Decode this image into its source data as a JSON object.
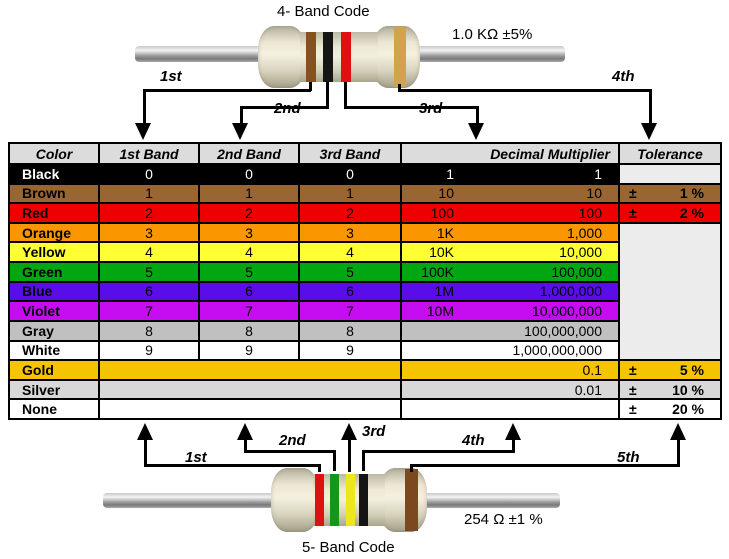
{
  "top_diagram": {
    "title": "4- Band Code",
    "value_label": "1.0 KΩ  ±5%",
    "band_pointers": [
      "1st",
      "2nd",
      "3rd",
      "4th"
    ],
    "bands": [
      {
        "name": "brown",
        "color": "#8A4F1F"
      },
      {
        "name": "black",
        "color": "#151515"
      },
      {
        "name": "red",
        "color": "#DD1111"
      },
      {
        "name": "gold",
        "color": "#D2A24C"
      }
    ]
  },
  "table": {
    "headers": [
      "Color",
      "1st Band",
      "2nd Band",
      "3rd Band",
      "Decimal Multiplier",
      "Tolerance"
    ],
    "plus_minus": "±",
    "rows": [
      {
        "color": "Black",
        "bg": "#000000",
        "fg": "#FFFFFF",
        "bands": [
          "0",
          "0",
          "0"
        ],
        "mult_abbr": "1",
        "mult_value": "1",
        "tolerance": ""
      },
      {
        "color": "Brown",
        "bg": "#996633",
        "bands": [
          "1",
          "1",
          "1"
        ],
        "mult_abbr": "10",
        "mult_value": "10",
        "tolerance": "1 %"
      },
      {
        "color": "Red",
        "bg": "#EE0000",
        "bands": [
          "2",
          "2",
          "2"
        ],
        "mult_abbr": "100",
        "mult_value": "100",
        "tolerance": "2 %"
      },
      {
        "color": "Orange",
        "bg": "#FA9600",
        "bands": [
          "3",
          "3",
          "3"
        ],
        "mult_abbr": "1K",
        "mult_value": "1,000"
      },
      {
        "color": "Yellow",
        "bg": "#FFFF33",
        "bands": [
          "4",
          "4",
          "4"
        ],
        "mult_abbr": "10K",
        "mult_value": "10,000"
      },
      {
        "color": "Green",
        "bg": "#00A713",
        "bands": [
          "5",
          "5",
          "5"
        ],
        "mult_abbr": "100K",
        "mult_value": "100,000"
      },
      {
        "color": "Blue",
        "bg": "#5A0DE8",
        "bands": [
          "6",
          "6",
          "6"
        ],
        "mult_abbr": "1M",
        "mult_value": "1,000,000"
      },
      {
        "color": "Violet",
        "bg": "#C60DF2",
        "bands": [
          "7",
          "7",
          "7"
        ],
        "mult_abbr": "10M",
        "mult_value": "10,000,000"
      },
      {
        "color": "Gray",
        "bg": "#C0C0C0",
        "bands": [
          "8",
          "8",
          "8"
        ],
        "mult_abbr": "",
        "mult_value": "100,000,000"
      },
      {
        "color": "White",
        "bg": "#FFFFFF",
        "bands": [
          "9",
          "9",
          "9"
        ],
        "mult_abbr": "",
        "mult_value": "1,000,000,000"
      },
      {
        "color": "Gold",
        "bg": "#F5C400",
        "merged_bands": true,
        "mult_value": "0.1",
        "tolerance": "5 %"
      },
      {
        "color": "Silver",
        "bg": "#D8D8D8",
        "merged_bands": true,
        "mult_value": "0.01",
        "tolerance": "10 %"
      },
      {
        "color": "None",
        "bg": "#FFFFFF",
        "merged_bands": true,
        "mult_value": "",
        "tolerance": "20 %"
      }
    ]
  },
  "bottom_diagram": {
    "title": "5- Band Code",
    "value_label": "254 Ω  ±1 %",
    "band_pointers": [
      "1st",
      "2nd",
      "3rd",
      "4th",
      "5th"
    ],
    "bands": [
      {
        "name": "red",
        "color": "#DD1111"
      },
      {
        "name": "green",
        "color": "#169616"
      },
      {
        "name": "yellow",
        "color": "#EDE61A"
      },
      {
        "name": "black",
        "color": "#151515"
      },
      {
        "name": "brown",
        "color": "#7A491F"
      }
    ]
  },
  "colors": {
    "table_header_bg": "#DCDCDC",
    "empty_tolerance_bg": "#ECECEC",
    "border": "#000000"
  }
}
